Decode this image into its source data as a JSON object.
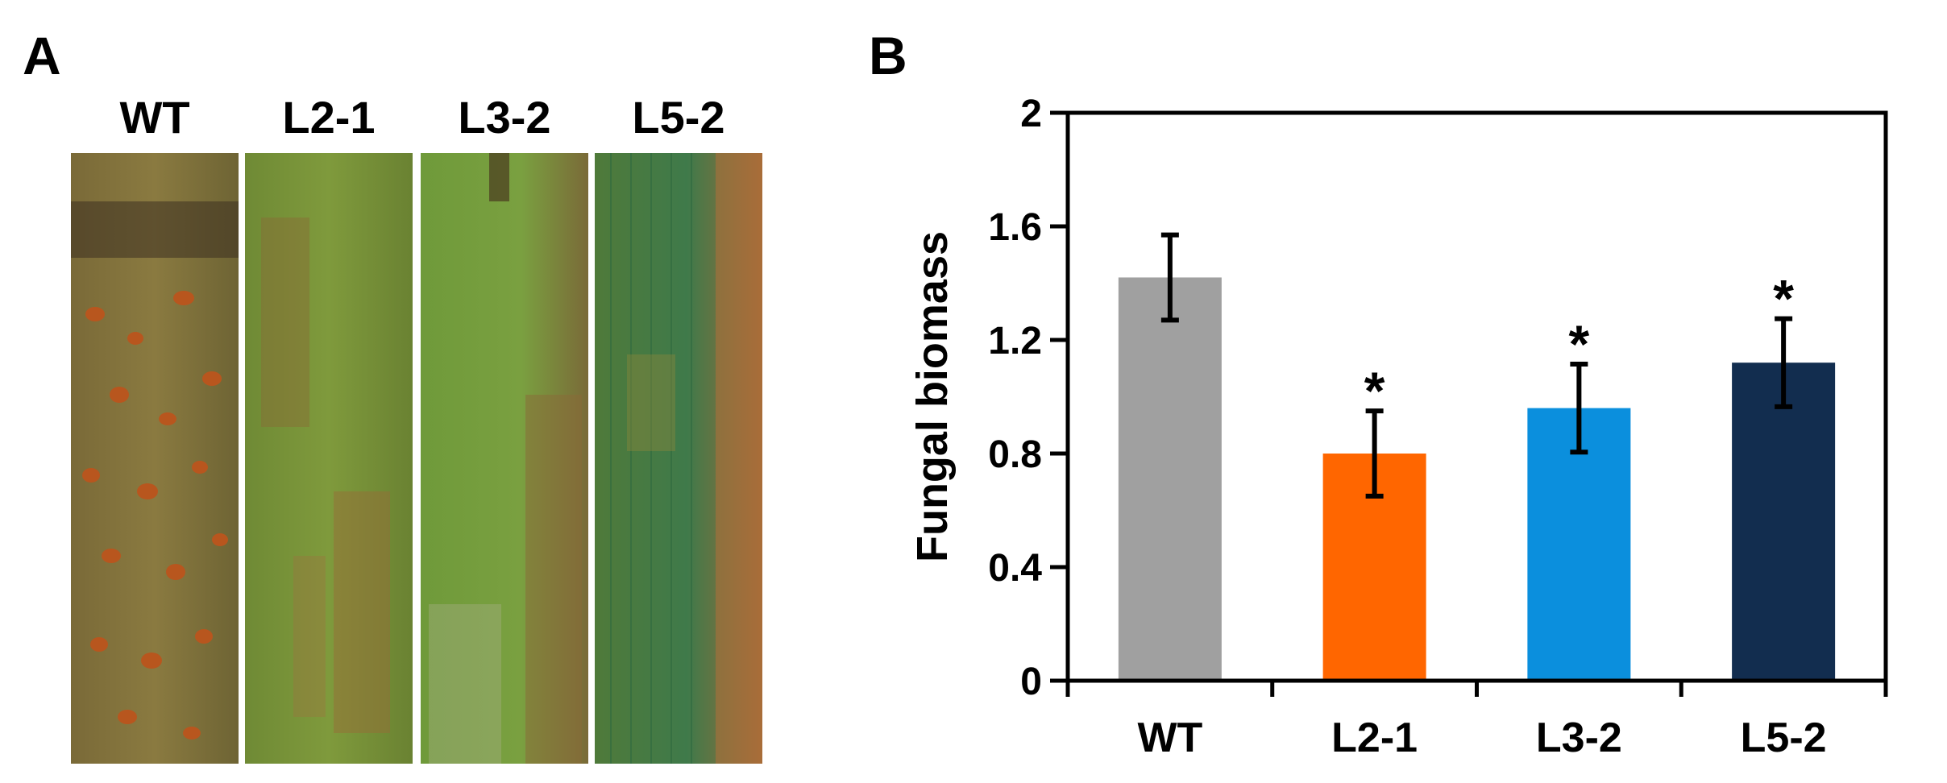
{
  "panels": {
    "a_label": "A",
    "b_label": "B"
  },
  "leaves": [
    {
      "label": "WT"
    },
    {
      "label": "L2-1"
    },
    {
      "label": "L3-2"
    },
    {
      "label": "L5-2"
    }
  ],
  "chart_data": {
    "type": "bar",
    "categories": [
      "WT",
      "L2-1",
      "L3-2",
      "L5-2"
    ],
    "values": [
      1.42,
      0.8,
      0.96,
      1.12
    ],
    "errors": [
      0.15,
      0.15,
      0.155,
      0.155
    ],
    "significance": [
      "",
      "*",
      "*",
      "*"
    ],
    "colors": [
      "#a0a0a0",
      "#ff6600",
      "#0b8fdd",
      "#122d4f"
    ],
    "title": "",
    "xlabel": "",
    "ylabel": "Fungal biomass",
    "ylim": [
      0,
      2
    ],
    "yticks": [
      0,
      0.4,
      0.8,
      1.2,
      1.6,
      2
    ],
    "ytick_labels": [
      "0",
      "0.4",
      "0.8",
      "1.2",
      "1.6",
      "2"
    ],
    "grid": false
  }
}
